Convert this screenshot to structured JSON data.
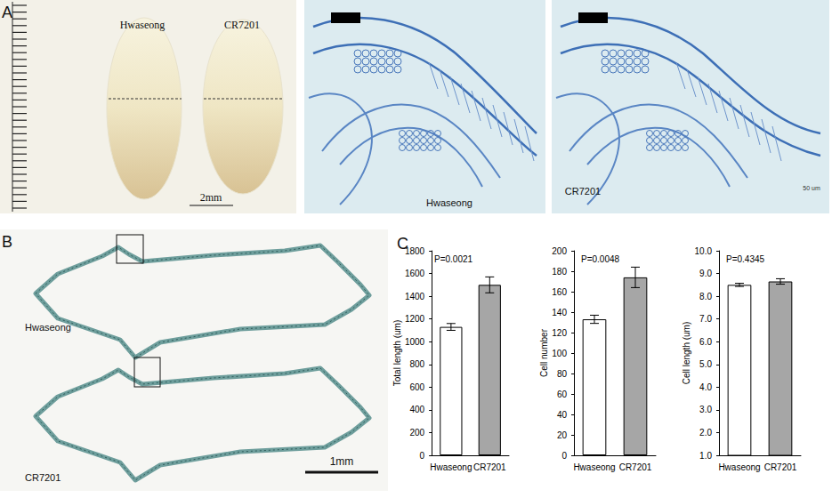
{
  "panel_labels": [
    "A",
    "B",
    "C"
  ],
  "panel_a": {
    "seed_labels": [
      "Hwaseong",
      "CR7201"
    ],
    "scale_bar": "2mm",
    "micrographs": [
      {
        "label": "Hwaseong"
      },
      {
        "label": "CR7201",
        "scale_bar": "50 um"
      }
    ]
  },
  "panel_b": {
    "section_labels": [
      "Hwaseong",
      "CR7201"
    ],
    "scale_bar": "1mm"
  },
  "chart_data": [
    {
      "type": "bar",
      "ylabel": "Total length (um)",
      "annotation": "P=0.0021",
      "categories": [
        "Hwaseong",
        "CR7201"
      ],
      "values": [
        1130,
        1500
      ],
      "errors": [
        30,
        70
      ],
      "colors": [
        "#ffffff",
        "#a6a6a6"
      ],
      "ylim": [
        0,
        1800
      ],
      "yticks": [
        0,
        200,
        400,
        600,
        800,
        1000,
        1200,
        1400,
        1600,
        1800
      ],
      "grid": false
    },
    {
      "type": "bar",
      "ylabel": "Cell number",
      "annotation": "P=0.0048",
      "categories": [
        "Hwaseong",
        "CR7201"
      ],
      "values": [
        133,
        174
      ],
      "errors": [
        4,
        10
      ],
      "colors": [
        "#ffffff",
        "#a6a6a6"
      ],
      "ylim": [
        0,
        200
      ],
      "yticks": [
        0,
        20,
        40,
        60,
        80,
        100,
        120,
        140,
        160,
        180,
        200
      ],
      "grid": false
    },
    {
      "type": "bar",
      "ylabel": "Cell length (um)",
      "annotation": "P=0.4345",
      "categories": [
        "Hwaseong",
        "CR7201"
      ],
      "values": [
        8.5,
        8.65
      ],
      "errors": [
        0.07,
        0.12
      ],
      "colors": [
        "#ffffff",
        "#a6a6a6"
      ],
      "ylim": [
        1,
        10
      ],
      "yticks": [
        {
          "value": 1,
          "label": "1.0"
        },
        {
          "value": 2,
          "label": "2.0"
        },
        {
          "value": 3,
          "label": "3.0"
        },
        {
          "value": 4,
          "label": "4.0"
        },
        {
          "value": 5,
          "label": "5.0"
        },
        {
          "value": 6,
          "label": "6.0"
        },
        {
          "value": 7,
          "label": "7.0"
        },
        {
          "value": 8,
          "label": "8.0"
        },
        {
          "value": 9,
          "label": "9.0"
        },
        {
          "value": 10,
          "label": "10.0"
        }
      ],
      "grid": false
    }
  ]
}
